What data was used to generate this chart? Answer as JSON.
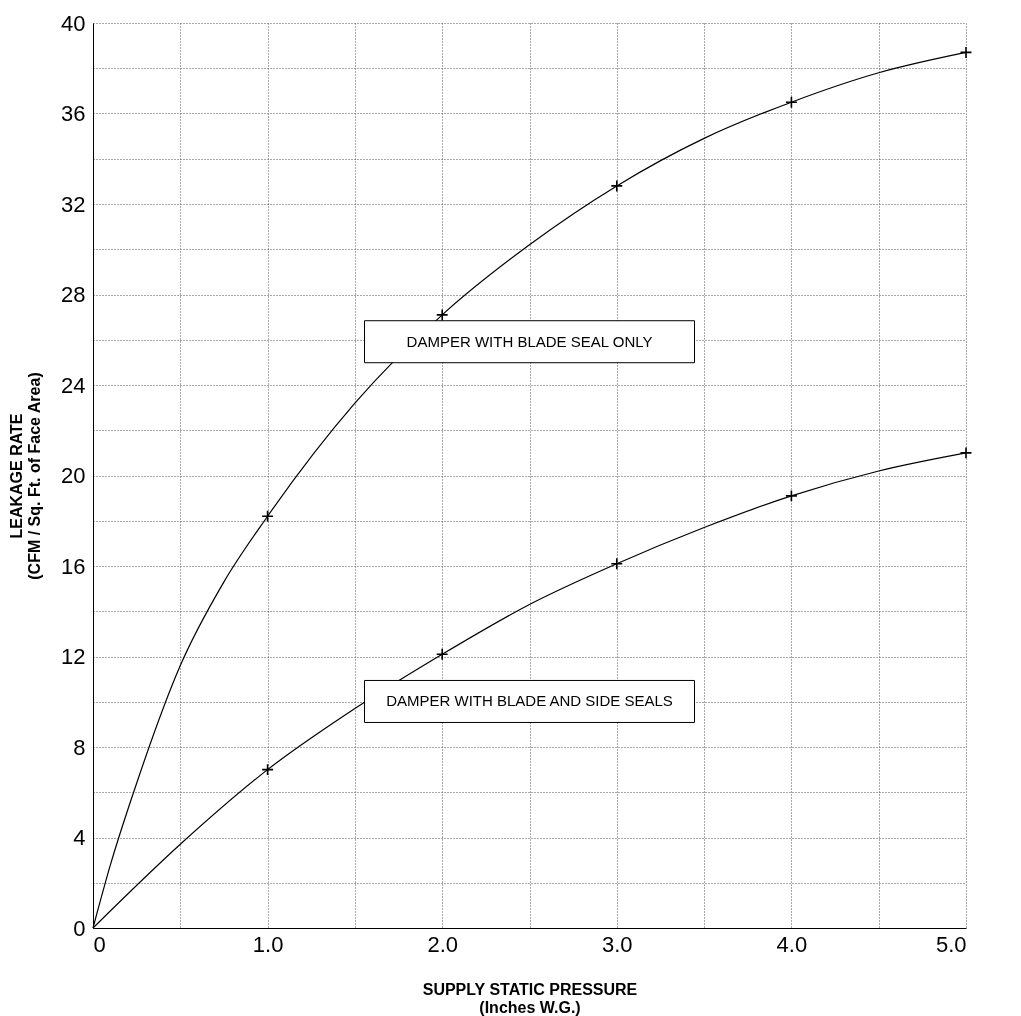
{
  "chart_data": {
    "type": "line",
    "xlabel": "SUPPLY STATIC PRESSURE\n(Inches W.G.)",
    "ylabel": "LEAKAGE RATE\n(CFM / Sq. Ft. of Face Area)",
    "series": [
      {
        "name": "DAMPER WITH BLADE SEAL ONLY",
        "color": "#000000",
        "marker": "none",
        "x": [
          0,
          0.1,
          0.25,
          0.5,
          0.75,
          1,
          1.5,
          2,
          2.5,
          3,
          3.5,
          4,
          4.5,
          5
        ],
        "values": [
          0,
          2.8,
          6.4,
          11.6,
          15.3,
          18.2,
          23.2,
          27.1,
          30.2,
          32.8,
          34.9,
          36.5,
          37.8,
          38.7
        ]
      },
      {
        "name": "DAMPER WITH BLADE AND SIDE SEALS",
        "color": "#000000",
        "marker": "none",
        "x": [
          0,
          0.5,
          1,
          1.5,
          2,
          2.5,
          3,
          3.5,
          4,
          4.5,
          5
        ],
        "values": [
          0,
          3.7,
          7.0,
          9.7,
          12.1,
          14.3,
          16.1,
          17.7,
          19.1,
          20.2,
          21.0
        ]
      },
      {
        "type": "scatter",
        "color": "#000000",
        "marker": "cross",
        "x": [
          1,
          2,
          3,
          4,
          5
        ],
        "values": [
          18.2,
          27.1,
          32.8,
          36.5,
          38.7
        ]
      },
      {
        "type": "scatter",
        "color": "#000000",
        "marker": "cross",
        "x": [
          1,
          2,
          3,
          4,
          5
        ],
        "values": [
          7.0,
          12.1,
          16.1,
          19.1,
          21.0
        ]
      }
    ],
    "xlim": [
      0,
      5
    ],
    "xticks": [
      0,
      {
        "value": 0.5,
        "label": null
      },
      {
        "value": 1,
        "label": "1.0"
      },
      {
        "value": 1.5,
        "label": null
      },
      {
        "value": 2,
        "label": "2.0"
      },
      {
        "value": 2.5,
        "label": null
      },
      {
        "value": 3,
        "label": "3.0"
      },
      {
        "value": 3.5,
        "label": null
      },
      {
        "value": 4,
        "label": "4.0"
      },
      {
        "value": 4.5,
        "label": null
      },
      {
        "value": 5,
        "label": "5.0"
      }
    ],
    "ylim": [
      0,
      40
    ],
    "yticks": [
      0,
      {
        "value": 2,
        "label": null
      },
      4,
      {
        "value": 6,
        "label": null
      },
      8,
      {
        "value": 10,
        "label": null
      },
      12,
      {
        "value": 14,
        "label": null
      },
      16,
      {
        "value": 18,
        "label": null
      },
      20,
      {
        "value": 22,
        "label": null
      },
      24,
      {
        "value": 26,
        "label": null
      },
      28,
      {
        "value": 30,
        "label": null
      },
      32,
      {
        "value": 34,
        "label": null
      },
      36,
      {
        "value": 38,
        "label": null
      },
      40
    ],
    "grid": true
  }
}
